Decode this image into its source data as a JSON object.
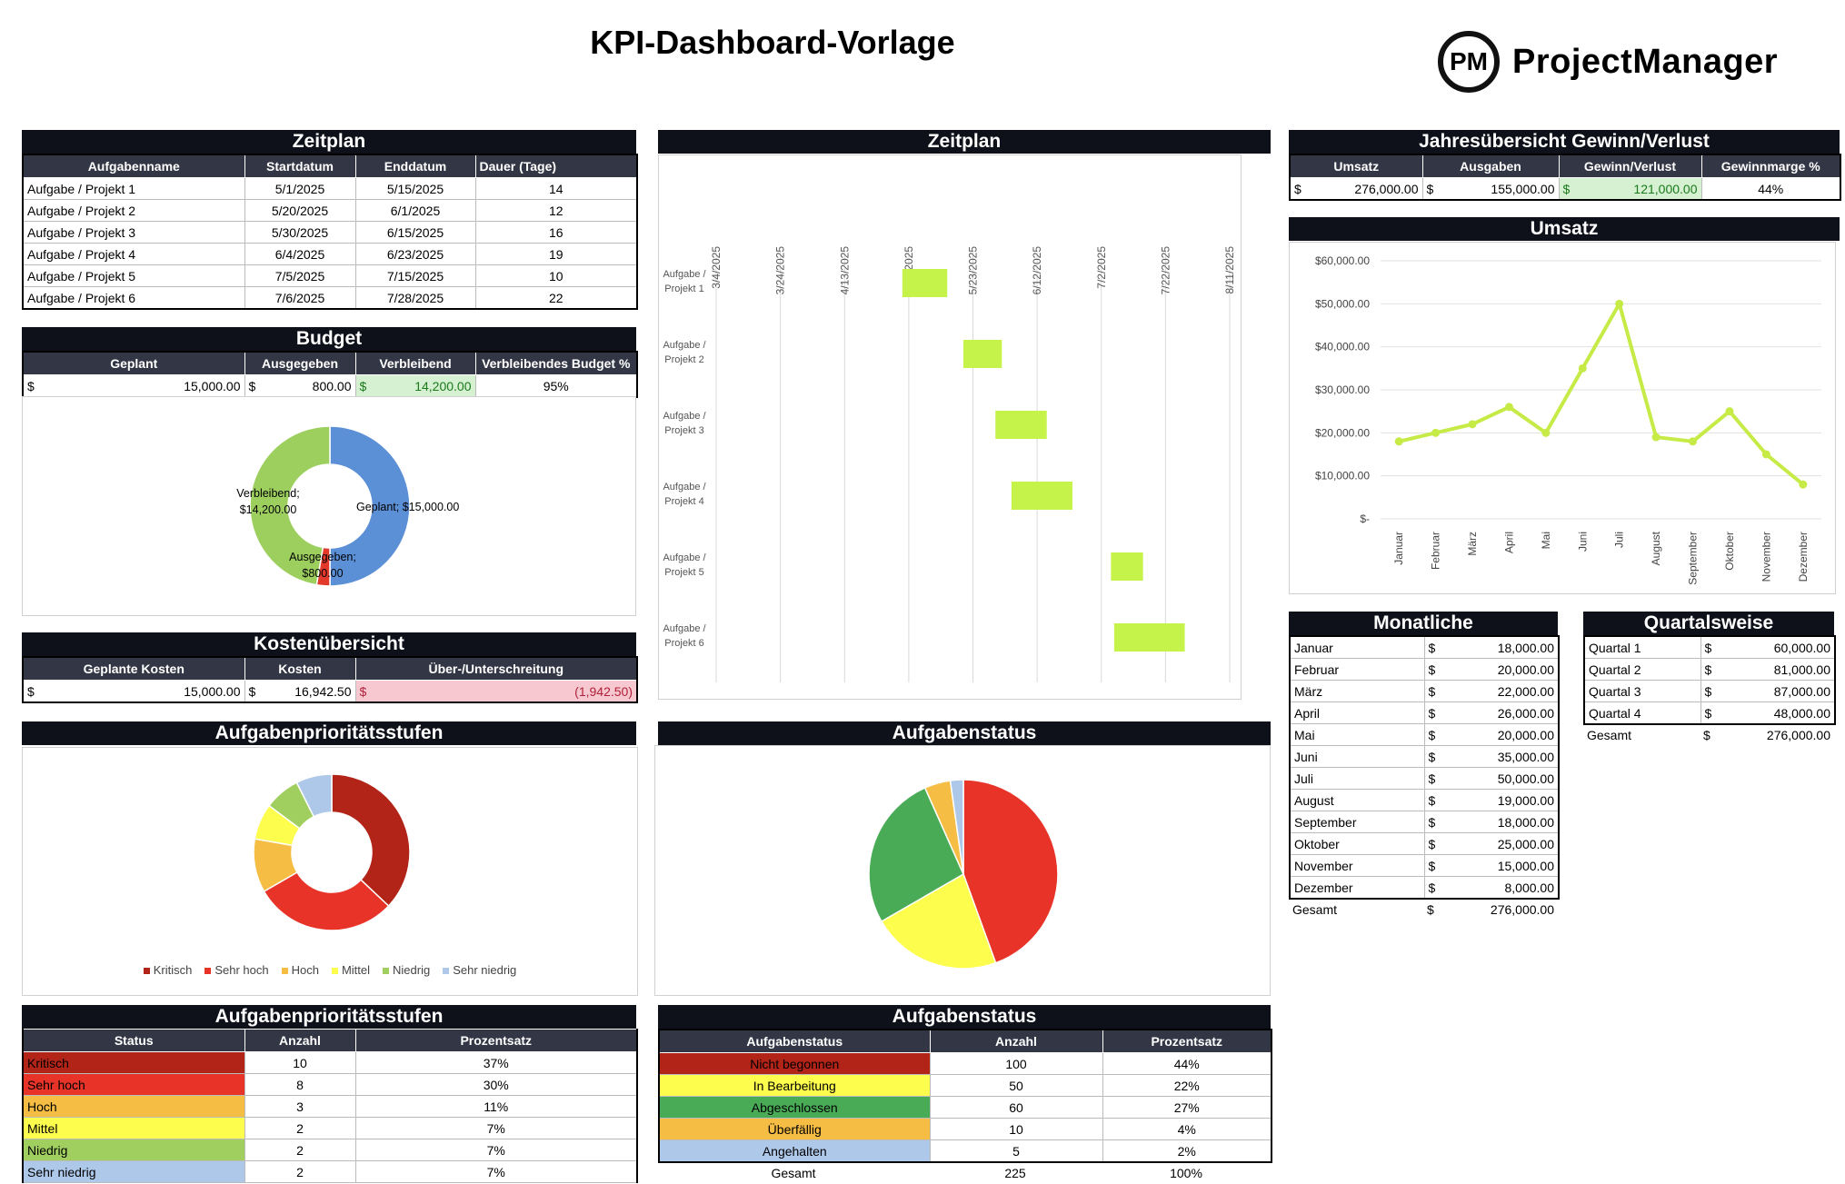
{
  "page": {
    "title": "KPI-Dashboard-Vorlage",
    "logo_mark": "PM",
    "logo_text": "ProjectManager"
  },
  "zeitplan_table": {
    "title": "Zeitplan",
    "headers": [
      "Aufgabenname",
      "Startdatum",
      "Enddatum",
      "Dauer (Tage)"
    ],
    "rows": [
      [
        "Aufgabe / Projekt 1",
        "5/1/2025",
        "5/15/2025",
        "14"
      ],
      [
        "Aufgabe / Projekt 2",
        "5/20/2025",
        "6/1/2025",
        "12"
      ],
      [
        "Aufgabe / Projekt 3",
        "5/30/2025",
        "6/15/2025",
        "16"
      ],
      [
        "Aufgabe / Projekt 4",
        "6/4/2025",
        "6/23/2025",
        "19"
      ],
      [
        "Aufgabe / Projekt 5",
        "7/5/2025",
        "7/15/2025",
        "10"
      ],
      [
        "Aufgabe / Projekt 6",
        "7/6/2025",
        "7/28/2025",
        "22"
      ]
    ]
  },
  "budget": {
    "title": "Budget",
    "headers": [
      "Geplant",
      "Ausgegeben",
      "Verbleibend",
      "Verbleibendes Budget %"
    ],
    "currency": "$",
    "geplant": "15,000.00",
    "ausgegeben": "800.00",
    "verbleibend": "14,200.00",
    "prozent": "95%",
    "chart_labels": {
      "verbleibend": [
        "Verbleibend;",
        "$14,200.00"
      ],
      "geplant": "Geplant; $15,000.00",
      "ausgegeben": [
        "Ausgegeben;",
        "$800.00"
      ]
    }
  },
  "kosten": {
    "title": "Kostenübersicht",
    "headers": [
      "Geplante Kosten",
      "Kosten",
      "Über-/Unterschreitung"
    ],
    "currency": "$",
    "geplant": "15,000.00",
    "kosten": "16,942.50",
    "diff": "(1,942.50)"
  },
  "gantt": {
    "title": "Zeitplan",
    "date_ticks": [
      "3/4/2025",
      "3/24/2025",
      "4/13/2025",
      "5/3/2025",
      "5/23/2025",
      "6/12/2025",
      "7/2/2025",
      "7/22/2025",
      "8/11/2025"
    ],
    "task_labels": [
      [
        "Aufgabe /",
        "Projekt 1"
      ],
      [
        "Aufgabe /",
        "Projekt 2"
      ],
      [
        "Aufgabe /",
        "Projekt 3"
      ],
      [
        "Aufgabe /",
        "Projekt 4"
      ],
      [
        "Aufgabe /",
        "Projekt 5"
      ],
      [
        "Aufgabe /",
        "Projekt 6"
      ]
    ],
    "bar_color": "#c6f34a"
  },
  "pl": {
    "title": "Jahresübersicht Gewinn/Verlust",
    "headers": [
      "Umsatz",
      "Ausgaben",
      "Gewinn/Verlust",
      "Gewinnmarge %"
    ],
    "currency": "$",
    "umsatz": "276,000.00",
    "ausgaben": "155,000.00",
    "gewinn": "121,000.00",
    "marge": "44%"
  },
  "umsatz_chart_title": "Umsatz",
  "monthly": {
    "title": "Monatliche",
    "currency": "$",
    "rows": [
      [
        "Januar",
        "18,000.00"
      ],
      [
        "Februar",
        "20,000.00"
      ],
      [
        "März",
        "22,000.00"
      ],
      [
        "April",
        "26,000.00"
      ],
      [
        "Mai",
        "20,000.00"
      ],
      [
        "Juni",
        "35,000.00"
      ],
      [
        "Juli",
        "50,000.00"
      ],
      [
        "August",
        "19,000.00"
      ],
      [
        "September",
        "18,000.00"
      ],
      [
        "Oktober",
        "25,000.00"
      ],
      [
        "November",
        "15,000.00"
      ],
      [
        "Dezember",
        "8,000.00"
      ]
    ],
    "total_label": "Gesamt",
    "total": "276,000.00"
  },
  "quarterly": {
    "title": "Quartalsweise",
    "currency": "$",
    "rows": [
      [
        "Quartal 1",
        "60,000.00"
      ],
      [
        "Quartal 2",
        "81,000.00"
      ],
      [
        "Quartal 3",
        "87,000.00"
      ],
      [
        "Quartal 4",
        "48,000.00"
      ]
    ],
    "total_label": "Gesamt",
    "total": "276,000.00"
  },
  "priority_chart_title": "Aufgabenprioritätsstufen",
  "status_chart_title": "Aufgabenstatus",
  "priority_table": {
    "title": "Aufgabenprioritätsstufen",
    "headers": [
      "Status",
      "Anzahl",
      "Prozentsatz"
    ],
    "rows": [
      {
        "label": "Kritisch",
        "count": "10",
        "pct": "37%",
        "color": "#b22418"
      },
      {
        "label": "Sehr hoch",
        "count": "8",
        "pct": "30%",
        "color": "#e83428"
      },
      {
        "label": "Hoch",
        "count": "3",
        "pct": "11%",
        "color": "#f6bd45"
      },
      {
        "label": "Mittel",
        "count": "2",
        "pct": "7%",
        "color": "#fdfd4d"
      },
      {
        "label": "Niedrig",
        "count": "2",
        "pct": "7%",
        "color": "#a0cf5f"
      },
      {
        "label": "Sehr niedrig",
        "count": "2",
        "pct": "7%",
        "color": "#aec8ea"
      }
    ]
  },
  "status_table": {
    "title": "Aufgabenstatus",
    "headers": [
      "Aufgabenstatus",
      "Anzahl",
      "Prozentsatz"
    ],
    "rows": [
      {
        "label": "Nicht begonnen",
        "count": "100",
        "pct": "44%",
        "color": "#b22418"
      },
      {
        "label": "In Bearbeitung",
        "count": "50",
        "pct": "22%",
        "color": "#fdfd4d"
      },
      {
        "label": "Abgeschlossen",
        "count": "60",
        "pct": "27%",
        "color": "#4aab57"
      },
      {
        "label": "Überfällig",
        "count": "10",
        "pct": "4%",
        "color": "#f6bd45"
      },
      {
        "label": "Angehalten",
        "count": "5",
        "pct": "2%",
        "color": "#aec8ea"
      }
    ],
    "total_label": "Gesamt",
    "total_count": "225",
    "total_pct": "100%"
  },
  "chart_data": [
    {
      "type": "line",
      "title": "Umsatz",
      "categories": [
        "Januar",
        "Februar",
        "März",
        "April",
        "Mai",
        "Juni",
        "Juli",
        "August",
        "September",
        "Oktober",
        "November",
        "Dezember"
      ],
      "values": [
        18000,
        20000,
        22000,
        26000,
        20000,
        35000,
        50000,
        19000,
        18000,
        25000,
        15000,
        8000
      ],
      "ylim": [
        0,
        60000
      ],
      "yticks": [
        "$-",
        "$10,000.00",
        "$20,000.00",
        "$30,000.00",
        "$40,000.00",
        "$50,000.00",
        "$60,000.00"
      ],
      "color": "#c6ea46",
      "grid": true
    },
    {
      "type": "pie",
      "title": "Budget",
      "donut": true,
      "labels": [
        "Geplant",
        "Ausgegeben",
        "Verbleibend"
      ],
      "values": [
        15000,
        800,
        14200
      ],
      "colors": [
        "#5b8fd6",
        "#e2392b",
        "#9dcf5f"
      ]
    },
    {
      "type": "pie",
      "title": "Aufgabenprioritätsstufen",
      "donut": true,
      "labels": [
        "Kritisch",
        "Sehr hoch",
        "Hoch",
        "Mittel",
        "Niedrig",
        "Sehr niedrig"
      ],
      "values": [
        10,
        8,
        3,
        2,
        2,
        2
      ],
      "colors": [
        "#b22418",
        "#e83428",
        "#f6bd45",
        "#fdfd4d",
        "#a0cf5f",
        "#aec8ea"
      ],
      "legend": "bottom"
    },
    {
      "type": "pie",
      "title": "Aufgabenstatus",
      "donut": false,
      "labels": [
        "Nicht begonnen",
        "In Bearbeitung",
        "Abgeschlossen",
        "Überfällig",
        "Angehalten"
      ],
      "values": [
        100,
        50,
        60,
        10,
        5
      ],
      "colors": [
        "#e83428",
        "#fdfd4d",
        "#4aab57",
        "#f6bd45",
        "#aec8ea"
      ]
    },
    {
      "type": "bar",
      "title": "Zeitplan",
      "orientation": "gantt",
      "categories": [
        "Aufgabe / Projekt 1",
        "Aufgabe / Projekt 2",
        "Aufgabe / Projekt 3",
        "Aufgabe / Projekt 4",
        "Aufgabe / Projekt 5",
        "Aufgabe / Projekt 6"
      ],
      "start": [
        "2025-05-01",
        "2025-05-20",
        "2025-05-30",
        "2025-06-04",
        "2025-07-05",
        "2025-07-06"
      ],
      "end": [
        "2025-05-15",
        "2025-06-01",
        "2025-06-15",
        "2025-06-23",
        "2025-07-15",
        "2025-07-28"
      ],
      "xlim": [
        "2025-03-04",
        "2025-08-11"
      ]
    }
  ]
}
